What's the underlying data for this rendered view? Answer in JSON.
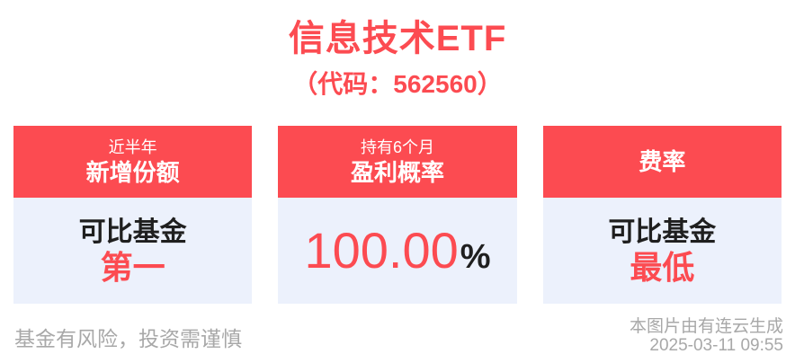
{
  "title": "信息技术ETF",
  "subtitle": "（代码：562560）",
  "colors": {
    "accent_red": "#FC4B51",
    "card_body_bg": "#ECF1FC",
    "text_black": "#1F1F1F",
    "footer_gray": "#A8A8A8",
    "header_text": "#FFFFFF",
    "background": "#FFFFFF"
  },
  "cards": [
    {
      "header_line1": "近半年",
      "header_line2": "新增份额",
      "body_line1": "可比基金",
      "body_highlight": "第一"
    },
    {
      "header_line1": "持有6个月",
      "header_line2": "盈利概率",
      "value": "100.00",
      "value_unit": "%"
    },
    {
      "header": "费率",
      "body_line1": "可比基金",
      "body_highlight": "最低"
    }
  ],
  "footer": {
    "disclaimer": "基金有风险，投资需谨慎",
    "credit": "本图片由有连云生成",
    "timestamp": "2025-03-11 09:55"
  }
}
